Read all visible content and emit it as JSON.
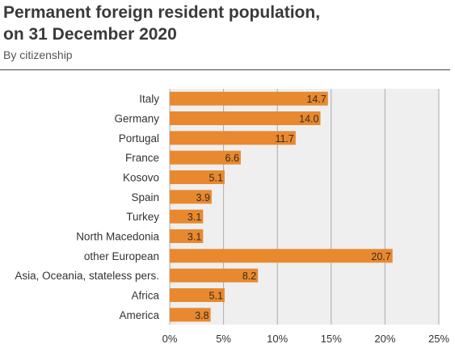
{
  "header": {
    "title_line1": "Permanent foreign resident population,",
    "title_line2": "on 31 December 2020",
    "subtitle": "By citizenship"
  },
  "chart_data": {
    "type": "bar",
    "orientation": "horizontal",
    "title": "Permanent foreign resident population, on 31 December 2020",
    "subtitle": "By citizenship",
    "xlabel": "",
    "ylabel": "",
    "categories": [
      "Italy",
      "Germany",
      "Portugal",
      "France",
      "Kosovo",
      "Spain",
      "Turkey",
      "North Macedonia",
      "other European",
      "Asia, Oceania, stateless pers.",
      "Africa",
      "America"
    ],
    "values": [
      14.7,
      14.0,
      11.7,
      6.6,
      5.1,
      3.9,
      3.1,
      3.1,
      20.7,
      8.2,
      5.1,
      3.8
    ],
    "value_labels": [
      "14.7",
      "14.0",
      "11.7",
      "6.6",
      "5.1",
      "3.9",
      "3.1",
      "3.1",
      "20.7",
      "8.2",
      "5.1",
      "3.8"
    ],
    "xlim": [
      0,
      25
    ],
    "x_ticks": [
      0,
      5,
      10,
      15,
      20,
      25
    ],
    "x_tick_labels": [
      "0%",
      "5%",
      "10%",
      "15%",
      "20%",
      "25%"
    ],
    "grid": true,
    "colors": {
      "bar": "#E8892F",
      "plot_bg": "#EFEFEF",
      "grid": "#AAAAAA"
    }
  }
}
